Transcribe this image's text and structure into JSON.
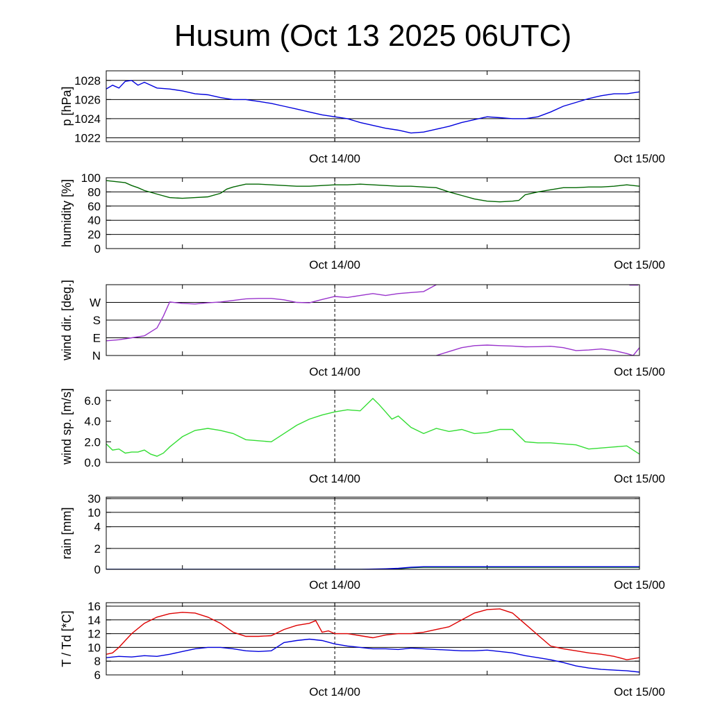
{
  "title": "Husum (Oct 13 2025 06UTC)",
  "x_labels": [
    "Oct 14/00",
    "Oct 15/00"
  ],
  "chart_data": [
    {
      "type": "line",
      "ylabel": "p [hPa]",
      "ylim": [
        1021.6,
        1029
      ],
      "yticks": [
        1022,
        1024,
        1026,
        1028
      ],
      "ytick_labels": [
        "1022",
        "1024",
        "1026",
        "1028"
      ],
      "x_range_hours": [
        0,
        42
      ],
      "x_ticks_hours": [
        6,
        18,
        30,
        42
      ],
      "x_tick_labels": {
        "18": "Oct 14/00",
        "42": "Oct 15/00"
      },
      "marker_hour": 18,
      "grid": true,
      "series": [
        {
          "color": "#0000dd",
          "x": [
            0,
            0.5,
            1,
            1.5,
            2,
            2.5,
            3,
            4,
            5,
            6,
            7,
            8,
            9,
            10,
            11,
            12,
            13,
            14,
            15,
            16,
            17,
            18,
            19,
            20,
            21,
            22,
            23,
            24,
            25,
            26,
            27,
            28,
            29,
            30,
            31,
            32,
            33,
            34,
            35,
            36,
            37,
            38,
            39,
            40,
            41,
            42
          ],
          "y": [
            1027.1,
            1027.5,
            1027.2,
            1027.9,
            1028.0,
            1027.5,
            1027.8,
            1027.2,
            1027.1,
            1026.9,
            1026.6,
            1026.5,
            1026.2,
            1026.0,
            1026.0,
            1025.8,
            1025.6,
            1025.3,
            1025.0,
            1024.7,
            1024.4,
            1024.2,
            1024.0,
            1023.6,
            1023.3,
            1023.0,
            1022.8,
            1022.5,
            1022.6,
            1022.9,
            1023.2,
            1023.6,
            1023.9,
            1024.2,
            1024.1,
            1024.0,
            1024.0,
            1024.2,
            1024.7,
            1025.3,
            1025.7,
            1026.1,
            1026.4,
            1026.6,
            1026.6,
            1026.8
          ]
        }
      ]
    },
    {
      "type": "line",
      "ylabel": "humidity [%]",
      "ylim": [
        0,
        100
      ],
      "yticks": [
        0,
        20,
        40,
        60,
        80,
        100
      ],
      "ytick_labels": [
        "0",
        "20",
        "40",
        "60",
        "80",
        "100"
      ],
      "x_range_hours": [
        0,
        42
      ],
      "x_ticks_hours": [
        6,
        18,
        30,
        42
      ],
      "x_tick_labels": {
        "18": "Oct 14/00",
        "42": "Oct 15/00"
      },
      "marker_hour": 18,
      "grid": true,
      "series": [
        {
          "color": "#006600",
          "x": [
            0,
            0.5,
            1,
            1.5,
            2,
            2.5,
            3,
            4,
            5,
            6,
            7,
            8,
            9,
            9.5,
            10,
            11,
            12,
            13,
            14,
            15,
            16,
            17,
            18,
            19,
            20,
            21,
            22,
            23,
            24,
            25,
            26,
            27,
            28,
            29,
            30,
            31,
            32,
            32.5,
            33,
            34,
            35,
            36,
            37,
            38,
            39,
            40,
            41,
            42
          ],
          "y": [
            96,
            95,
            94,
            93,
            89,
            86,
            82,
            77,
            72,
            71,
            72,
            73,
            78,
            84,
            87,
            91,
            91,
            90,
            89,
            88,
            88,
            89,
            90,
            90,
            91,
            90,
            89,
            88,
            88,
            87,
            86,
            80,
            75,
            70,
            67,
            66,
            67,
            68,
            76,
            80,
            83,
            86,
            86,
            87,
            87,
            88,
            90,
            88
          ]
        }
      ]
    },
    {
      "type": "line",
      "ylabel": "wind dir. [deg.]",
      "ylim": [
        0,
        360
      ],
      "yticks": [
        0,
        90,
        180,
        270
      ],
      "ytick_labels": [
        "N",
        "E",
        "S",
        "W"
      ],
      "x_range_hours": [
        0,
        42
      ],
      "x_ticks_hours": [
        6,
        18,
        30,
        42
      ],
      "x_tick_labels": {
        "18": "Oct 14/00",
        "42": "Oct 15/00"
      },
      "marker_hour": 18,
      "grid": true,
      "series": [
        {
          "color": "#9933cc",
          "x": [
            0,
            1,
            2,
            3,
            4,
            4.5,
            5,
            6,
            7,
            8,
            9,
            10,
            11,
            12,
            13,
            14,
            15,
            16,
            17,
            18,
            19,
            20,
            21,
            22,
            23,
            24,
            25,
            26
          ],
          "y": [
            75,
            80,
            90,
            100,
            140,
            200,
            272,
            265,
            262,
            268,
            272,
            280,
            288,
            290,
            290,
            283,
            270,
            268,
            285,
            300,
            295,
            305,
            315,
            305,
            315,
            320,
            325,
            360
          ]
        },
        {
          "color": "#9933cc",
          "x": [
            26,
            27,
            28,
            29,
            30,
            31,
            32,
            33,
            34,
            35,
            36,
            37,
            38,
            39,
            40,
            41,
            41.5,
            42
          ],
          "y": [
            0,
            20,
            40,
            50,
            53,
            50,
            48,
            44,
            45,
            47,
            40,
            25,
            28,
            33,
            25,
            10,
            0,
            40
          ]
        },
        {
          "color": "#9933cc",
          "x": [
            41.2,
            41.9
          ],
          "y": [
            358,
            358
          ]
        }
      ]
    },
    {
      "type": "line",
      "ylabel": "wind sp. [m/s]",
      "ylim": [
        0,
        7
      ],
      "yticks": [
        0,
        2,
        4,
        6
      ],
      "ytick_labels": [
        "0.0",
        "2.0",
        "4.0",
        "6.0"
      ],
      "x_range_hours": [
        0,
        42
      ],
      "x_ticks_hours": [
        6,
        18,
        30,
        42
      ],
      "x_tick_labels": {
        "18": "Oct 14/00",
        "42": "Oct 15/00"
      },
      "marker_hour": 18,
      "grid": false,
      "series": [
        {
          "color": "#33dd33",
          "x": [
            0,
            0.5,
            1,
            1.5,
            2,
            2.5,
            3,
            3.5,
            4,
            4.5,
            5,
            6,
            7,
            8,
            9,
            10,
            11,
            12,
            13,
            14,
            15,
            16,
            17,
            18,
            19,
            20,
            21,
            21.5,
            22,
            22.5,
            23,
            24,
            25,
            26,
            27,
            28,
            29,
            30,
            31,
            32,
            33,
            34,
            35,
            36,
            37,
            38,
            39,
            40,
            41,
            42
          ],
          "y": [
            1.8,
            1.2,
            1.3,
            0.9,
            1.0,
            1.0,
            1.2,
            0.8,
            0.6,
            0.9,
            1.5,
            2.5,
            3.1,
            3.3,
            3.1,
            2.8,
            2.2,
            2.1,
            2.0,
            2.8,
            3.6,
            4.2,
            4.6,
            4.9,
            5.1,
            5.0,
            6.2,
            5.6,
            4.9,
            4.2,
            4.5,
            3.4,
            2.8,
            3.3,
            3.0,
            3.2,
            2.8,
            2.9,
            3.2,
            3.2,
            2.0,
            1.9,
            1.9,
            1.8,
            1.7,
            1.3,
            1.4,
            1.5,
            1.6,
            0.8
          ]
        }
      ]
    },
    {
      "type": "line",
      "ylabel": "rain [mm]",
      "ylim": [
        0,
        31
      ],
      "yticks": [
        0,
        2,
        4,
        10,
        30
      ],
      "ytick_labels": [
        "0",
        "2",
        "4",
        "10",
        "30"
      ],
      "x_range_hours": [
        0,
        42
      ],
      "x_ticks_hours": [
        6,
        18,
        30,
        42
      ],
      "x_tick_labels": {
        "18": "Oct 14/00",
        "42": "Oct 15/00"
      },
      "marker_hour": 18,
      "grid": true,
      "series": [
        {
          "color": "#006600",
          "x": [
            0,
            22,
            23,
            24,
            25,
            42
          ],
          "y": [
            0,
            0,
            0.05,
            0.15,
            0.2,
            0.2
          ]
        },
        {
          "color": "#0000dd",
          "x": [
            0,
            20,
            22,
            23,
            24,
            25,
            42
          ],
          "y": [
            0,
            0,
            0.05,
            0.1,
            0.2,
            0.25,
            0.25
          ]
        }
      ]
    },
    {
      "type": "line",
      "ylabel": "T / Td [*C]",
      "ylim": [
        6,
        16.5
      ],
      "yticks": [
        6,
        8,
        10,
        12,
        14,
        16
      ],
      "ytick_labels": [
        "6",
        "8",
        "10",
        "12",
        "14",
        "16"
      ],
      "x_range_hours": [
        0,
        42
      ],
      "x_ticks_hours": [
        6,
        18,
        30,
        42
      ],
      "x_tick_labels": {
        "18": "Oct 14/00",
        "42": "Oct 15/00"
      },
      "marker_hour": 18,
      "grid": true,
      "series": [
        {
          "color": "#dd0000",
          "x": [
            0,
            0.5,
            1,
            1.5,
            2,
            3,
            4,
            5,
            6,
            7,
            8,
            9,
            10,
            11,
            12,
            13,
            14,
            15,
            16,
            16.5,
            17,
            17.5,
            18,
            19,
            20,
            21,
            22,
            23,
            24,
            25,
            26,
            27,
            28,
            29,
            30,
            31,
            32,
            33,
            34,
            35,
            36,
            37,
            38,
            39,
            40,
            41,
            42
          ],
          "y": [
            9.0,
            9.2,
            10.0,
            11.0,
            12.0,
            13.5,
            14.4,
            14.9,
            15.1,
            15.0,
            14.4,
            13.5,
            12.2,
            11.6,
            11.6,
            11.7,
            12.6,
            13.2,
            13.5,
            13.9,
            12.2,
            12.4,
            12.0,
            12.0,
            11.7,
            11.4,
            11.8,
            12.0,
            12.0,
            12.2,
            12.6,
            13.0,
            14.0,
            15.0,
            15.5,
            15.6,
            15.0,
            13.4,
            11.8,
            10.2,
            9.8,
            9.5,
            9.2,
            9.0,
            8.7,
            8.2,
            8.5
          ]
        },
        {
          "color": "#0000dd",
          "x": [
            0,
            1,
            2,
            3,
            4,
            5,
            6,
            7,
            8,
            9,
            10,
            11,
            12,
            13,
            14,
            15,
            16,
            17,
            18,
            19,
            20,
            21,
            22,
            23,
            24,
            25,
            26,
            27,
            28,
            29,
            30,
            31,
            32,
            33,
            34,
            35,
            36,
            37,
            38,
            39,
            40,
            41,
            42
          ],
          "y": [
            8.5,
            8.7,
            8.6,
            8.8,
            8.7,
            9.0,
            9.4,
            9.8,
            10.0,
            10.0,
            9.8,
            9.5,
            9.4,
            9.5,
            10.7,
            11.0,
            11.2,
            11.0,
            10.5,
            10.2,
            10.0,
            9.8,
            9.8,
            9.7,
            9.9,
            9.8,
            9.7,
            9.6,
            9.5,
            9.5,
            9.6,
            9.4,
            9.2,
            8.8,
            8.5,
            8.2,
            7.8,
            7.3,
            7.0,
            6.8,
            6.7,
            6.6,
            6.4
          ]
        }
      ]
    }
  ]
}
